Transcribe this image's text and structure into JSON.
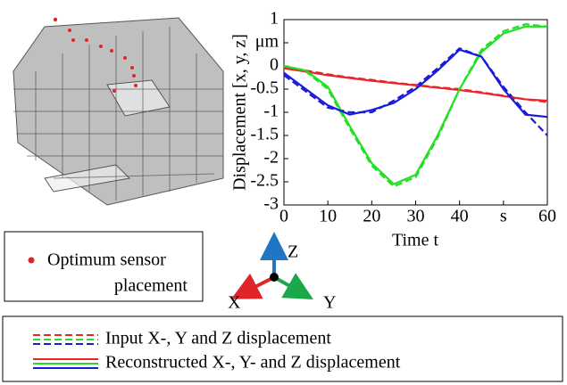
{
  "chart_data": {
    "type": "line",
    "y_label": "Displacement [x, y, z]",
    "x_label": "Time t",
    "x": [
      0,
      5,
      10,
      15,
      20,
      25,
      30,
      35,
      40,
      45,
      50,
      55,
      60
    ],
    "xlim": [
      0,
      60
    ],
    "xticks": [
      0,
      10,
      20,
      30,
      40,
      {
        "value": 50,
        "label": "s"
      },
      60
    ],
    "ylim": [
      -3,
      1
    ],
    "yticks": [
      1,
      {
        "value": 0.5,
        "label": "μm"
      },
      0,
      -0.5,
      -1,
      -1.5,
      -2,
      -2.5,
      -3
    ],
    "series": [
      {
        "color": "#e8262a",
        "style": "dashed",
        "values": [
          -0.03,
          -0.1,
          -0.18,
          -0.25,
          -0.3,
          -0.36,
          -0.41,
          -0.46,
          -0.5,
          -0.57,
          -0.64,
          -0.72,
          -0.78
        ]
      },
      {
        "color": "#22e022",
        "style": "dashed",
        "values": [
          0,
          -0.12,
          -0.5,
          -1.35,
          -2.15,
          -2.6,
          -2.4,
          -1.55,
          -0.5,
          0.35,
          0.75,
          0.9,
          0.85
        ]
      },
      {
        "color": "#1a1adc",
        "style": "dashed",
        "values": [
          -0.2,
          -0.55,
          -0.9,
          -1.0,
          -1.0,
          -0.75,
          -0.45,
          -0.05,
          0.38,
          0.2,
          -0.45,
          -1.0,
          -1.5
        ]
      },
      {
        "color": "#e8262a",
        "style": "solid",
        "values": [
          -0.05,
          -0.12,
          -0.2,
          -0.26,
          -0.32,
          -0.37,
          -0.42,
          -0.47,
          -0.52,
          -0.58,
          -0.65,
          -0.72,
          -0.75
        ]
      },
      {
        "color": "#22e022",
        "style": "solid",
        "values": [
          0,
          -0.1,
          -0.45,
          -1.3,
          -2.1,
          -2.55,
          -2.35,
          -1.5,
          -0.5,
          0.3,
          0.7,
          0.85,
          0.85
        ]
      },
      {
        "color": "#1a1adc",
        "style": "solid",
        "values": [
          -0.15,
          -0.5,
          -0.85,
          -1.05,
          -0.95,
          -0.8,
          -0.5,
          -0.1,
          0.35,
          0.2,
          -0.5,
          -1.05,
          -1.1
        ]
      }
    ],
    "legend": [
      {
        "label": "Input X-, Y and Z displacement",
        "style": "dashed"
      },
      {
        "label": "Reconstructed X-, Y- and Z displacement",
        "style": "solid"
      }
    ],
    "sensor_legend": [
      "Optimum sensor",
      "placement"
    ],
    "axis_triad": [
      "X",
      "Y",
      "Z"
    ]
  }
}
